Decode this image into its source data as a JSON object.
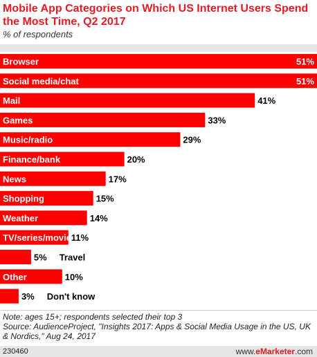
{
  "chart_data": {
    "type": "bar",
    "orientation": "horizontal",
    "title": "Mobile App Categories on Which US Internet Users Spend the Most Time, Q2 2017",
    "subtitle": "% of respondents",
    "categories": [
      "Browser",
      "Social media/chat",
      "Mail",
      "Games",
      "Music/radio",
      "Finance/bank",
      "News",
      "Shopping",
      "Weather",
      "TV/series/movies",
      "Travel",
      "Other",
      "Don't know"
    ],
    "values": [
      51,
      51,
      41,
      33,
      29,
      20,
      17,
      15,
      14,
      11,
      5,
      10,
      3
    ],
    "value_suffix": "%",
    "xlim": [
      0,
      51
    ],
    "bar_color": "#ff0000",
    "grid": false,
    "legend": "none"
  },
  "note": "Note: ages 15+; respondents selected their top 3",
  "source": "Source: AudienceProject, \"Insights 2017: Apps & Social Media Usage in the US, UK & Nordics,\" Aug 24, 2017",
  "footer": {
    "chart_id": "230460",
    "brand_prefix": "www.",
    "brand_name": "eMarketer",
    "brand_suffix": ".com",
    "brand_color": "#e31b23"
  }
}
